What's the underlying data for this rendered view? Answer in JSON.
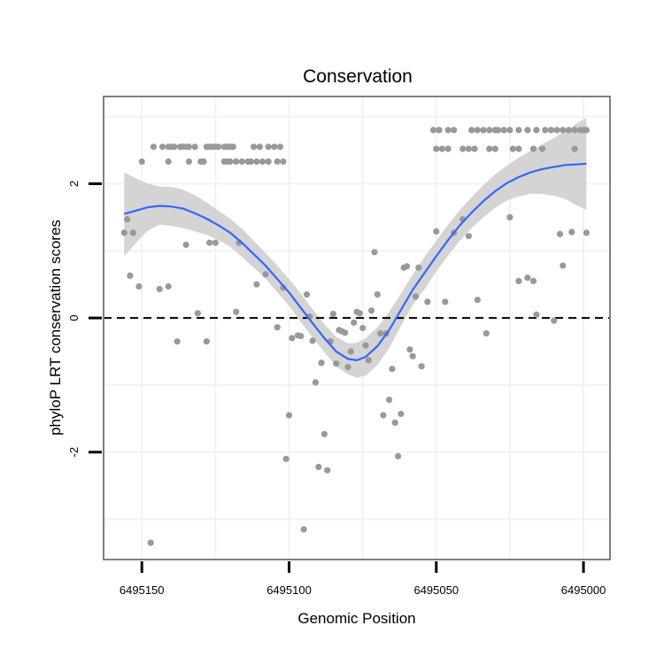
{
  "chart_data": {
    "type": "scatter",
    "title": "Conservation",
    "xlabel": "Genomic Position",
    "ylabel": "phyloP LRT conservation scores",
    "x_reversed": true,
    "xlim": [
      6495163,
      6494991
    ],
    "ylim": [
      -3.6,
      3.3
    ],
    "x_ticks": [
      6495150,
      6495100,
      6495050,
      6495000
    ],
    "x_tick_labels": [
      "6495150",
      "6495100",
      "6495050",
      "6495000"
    ],
    "y_ticks": [
      -2,
      0,
      2
    ],
    "y_tick_labels": [
      "-2",
      "0",
      "2"
    ],
    "reference_line": {
      "y": 0,
      "style": "dashed"
    },
    "grid": true,
    "colors": {
      "points": "#999999",
      "smooth_line": "#3366ff",
      "confidence_band": "#d4d4d4",
      "panel_border": "#7f7f7f",
      "grid": "#f2f2f2",
      "reference_line": "#000000"
    },
    "series": [
      {
        "name": "conservation-points",
        "points": [
          [
            6495156,
            1.27
          ],
          [
            6495155,
            1.47
          ],
          [
            6495154,
            0.63
          ],
          [
            6495153,
            1.27
          ],
          [
            6495151,
            0.47
          ],
          [
            6495147,
            -3.35
          ],
          [
            6495144,
            0.43
          ],
          [
            6495141,
            0.47
          ],
          [
            6495138,
            -0.35
          ],
          [
            6495135,
            1.09
          ],
          [
            6495131,
            0.07
          ],
          [
            6495128,
            -0.35
          ],
          [
            6495127,
            1.12
          ],
          [
            6495125,
            1.12
          ],
          [
            6495118,
            0.09
          ],
          [
            6495117,
            1.12
          ],
          [
            6495111,
            0.5
          ],
          [
            6495108,
            0.65
          ],
          [
            6495104,
            -0.14
          ],
          [
            6495102,
            0.45
          ],
          [
            6495101,
            -2.1
          ],
          [
            6495100,
            -1.45
          ],
          [
            6495099,
            -0.3
          ],
          [
            6495097,
            -0.26
          ],
          [
            6495096,
            -0.27
          ],
          [
            6495095,
            -3.15
          ],
          [
            6495094,
            0.35
          ],
          [
            6495093,
            0.02
          ],
          [
            6495092,
            -0.34
          ],
          [
            6495091,
            -0.96
          ],
          [
            6495090,
            -2.22
          ],
          [
            6495089,
            -0.67
          ],
          [
            6495088,
            -1.73
          ],
          [
            6495087,
            -2.27
          ],
          [
            6495086,
            -0.35
          ],
          [
            6495085,
            0.06
          ],
          [
            6495084,
            -0.68
          ],
          [
            6495083,
            -0.18
          ],
          [
            6495082,
            -0.2
          ],
          [
            6495081,
            -0.22
          ],
          [
            6495080,
            -0.73
          ],
          [
            6495079,
            -0.5
          ],
          [
            6495078,
            -0.07
          ],
          [
            6495077,
            0.09
          ],
          [
            6495076,
            0.07
          ],
          [
            6495075,
            -0.15
          ],
          [
            6495074,
            -0.41
          ],
          [
            6495073,
            -0.63
          ],
          [
            6495072,
            0.11
          ],
          [
            6495071,
            0.98
          ],
          [
            6495070,
            0.35
          ],
          [
            6495069,
            -0.23
          ],
          [
            6495068,
            -1.45
          ],
          [
            6495067,
            -0.23
          ],
          [
            6495066,
            -1.22
          ],
          [
            6495065,
            -0.76
          ],
          [
            6495064,
            -1.56
          ],
          [
            6495063,
            -2.06
          ],
          [
            6495062,
            -1.43
          ],
          [
            6495061,
            0.75
          ],
          [
            6495060,
            0.77
          ],
          [
            6495059,
            -0.47
          ],
          [
            6495058,
            -0.57
          ],
          [
            6495057,
            0.32
          ],
          [
            6495056,
            0.75
          ],
          [
            6495055,
            -0.72
          ],
          [
            6495053,
            0.24
          ],
          [
            6495050,
            1.29
          ],
          [
            6495047,
            0.24
          ],
          [
            6495044,
            1.27
          ],
          [
            6495041,
            1.47
          ],
          [
            6495039,
            1.22
          ],
          [
            6495036,
            0.27
          ],
          [
            6495033,
            -0.23
          ],
          [
            6495025,
            1.5
          ],
          [
            6495022,
            0.55
          ],
          [
            6495019,
            0.6
          ],
          [
            6495017,
            0.55
          ],
          [
            6495016,
            0.05
          ],
          [
            6495010,
            -0.04
          ],
          [
            6495008,
            1.25
          ],
          [
            6495007,
            0.78
          ],
          [
            6495004,
            1.28
          ],
          [
            6494999,
            1.27
          ],
          [
            6495146,
            2.55
          ],
          [
            6495143,
            2.55
          ],
          [
            6495141,
            2.55
          ],
          [
            6495140,
            2.55
          ],
          [
            6495139,
            2.55
          ],
          [
            6495137,
            2.55
          ],
          [
            6495136,
            2.55
          ],
          [
            6495135,
            2.55
          ],
          [
            6495134,
            2.55
          ],
          [
            6495132,
            2.55
          ],
          [
            6495128,
            2.55
          ],
          [
            6495127,
            2.55
          ],
          [
            6495126,
            2.55
          ],
          [
            6495125,
            2.55
          ],
          [
            6495124,
            2.55
          ],
          [
            6495122,
            2.55
          ],
          [
            6495121,
            2.55
          ],
          [
            6495120,
            2.55
          ],
          [
            6495119,
            2.55
          ],
          [
            6495112,
            2.55
          ],
          [
            6495110,
            2.55
          ],
          [
            6495107,
            2.55
          ],
          [
            6495105,
            2.55
          ],
          [
            6495103,
            2.55
          ],
          [
            6495150,
            2.33
          ],
          [
            6495141,
            2.33
          ],
          [
            6495134,
            2.33
          ],
          [
            6495130,
            2.33
          ],
          [
            6495129,
            2.33
          ],
          [
            6495122,
            2.33
          ],
          [
            6495121,
            2.33
          ],
          [
            6495120,
            2.33
          ],
          [
            6495118,
            2.33
          ],
          [
            6495116,
            2.33
          ],
          [
            6495114,
            2.33
          ],
          [
            6495113,
            2.33
          ],
          [
            6495111,
            2.33
          ],
          [
            6495109,
            2.33
          ],
          [
            6495107,
            2.33
          ],
          [
            6495104,
            2.33
          ],
          [
            6495102,
            2.33
          ],
          [
            6495051,
            2.8
          ],
          [
            6495049,
            2.8
          ],
          [
            6495046,
            2.8
          ],
          [
            6495044,
            2.8
          ],
          [
            6495038,
            2.8
          ],
          [
            6495036,
            2.8
          ],
          [
            6495034,
            2.8
          ],
          [
            6495032,
            2.8
          ],
          [
            6495030,
            2.8
          ],
          [
            6495029,
            2.8
          ],
          [
            6495027,
            2.8
          ],
          [
            6495025,
            2.8
          ],
          [
            6495022,
            2.8
          ],
          [
            6495019,
            2.8
          ],
          [
            6495016,
            2.8
          ],
          [
            6495013,
            2.8
          ],
          [
            6495011,
            2.8
          ],
          [
            6495009,
            2.8
          ],
          [
            6495007,
            2.8
          ],
          [
            6495005,
            2.8
          ],
          [
            6495003,
            2.8
          ],
          [
            6495001,
            2.8
          ],
          [
            6495000,
            2.8
          ],
          [
            6494999,
            2.8
          ],
          [
            6495050,
            2.52
          ],
          [
            6495048,
            2.52
          ],
          [
            6495046,
            2.52
          ],
          [
            6495041,
            2.52
          ],
          [
            6495039,
            2.52
          ],
          [
            6495037,
            2.52
          ],
          [
            6495032,
            2.52
          ],
          [
            6495030,
            2.52
          ],
          [
            6495024,
            2.52
          ],
          [
            6495022,
            2.52
          ],
          [
            6495017,
            2.52
          ],
          [
            6495014,
            2.52
          ],
          [
            6495003,
            2.52
          ]
        ]
      },
      {
        "name": "loess-smooth",
        "line": [
          [
            6495156,
            1.55
          ],
          [
            6495152,
            1.6
          ],
          [
            6495148,
            1.65
          ],
          [
            6495144,
            1.67
          ],
          [
            6495140,
            1.66
          ],
          [
            6495136,
            1.63
          ],
          [
            6495132,
            1.56
          ],
          [
            6495128,
            1.48
          ],
          [
            6495124,
            1.38
          ],
          [
            6495120,
            1.27
          ],
          [
            6495116,
            1.12
          ],
          [
            6495112,
            0.95
          ],
          [
            6495108,
            0.78
          ],
          [
            6495104,
            0.58
          ],
          [
            6495100,
            0.38
          ],
          [
            6495096,
            0.15
          ],
          [
            6495092,
            -0.08
          ],
          [
            6495088,
            -0.3
          ],
          [
            6495084,
            -0.5
          ],
          [
            6495080,
            -0.61
          ],
          [
            6495077,
            -0.63
          ],
          [
            6495074,
            -0.58
          ],
          [
            6495070,
            -0.42
          ],
          [
            6495066,
            -0.18
          ],
          [
            6495062,
            0.12
          ],
          [
            6495058,
            0.42
          ],
          [
            6495054,
            0.67
          ],
          [
            6495050,
            0.92
          ],
          [
            6495046,
            1.16
          ],
          [
            6495042,
            1.38
          ],
          [
            6495038,
            1.57
          ],
          [
            6495034,
            1.74
          ],
          [
            6495030,
            1.89
          ],
          [
            6495026,
            2.01
          ],
          [
            6495022,
            2.1
          ],
          [
            6495018,
            2.17
          ],
          [
            6495014,
            2.22
          ],
          [
            6495010,
            2.25
          ],
          [
            6495006,
            2.28
          ],
          [
            6495002,
            2.29
          ],
          [
            6494999,
            2.3
          ]
        ],
        "upper": [
          [
            6495156,
            2.17
          ],
          [
            6495152,
            2.08
          ],
          [
            6495148,
            2.0
          ],
          [
            6495144,
            1.96
          ],
          [
            6495140,
            1.95
          ],
          [
            6495136,
            1.91
          ],
          [
            6495132,
            1.83
          ],
          [
            6495128,
            1.72
          ],
          [
            6495124,
            1.6
          ],
          [
            6495120,
            1.48
          ],
          [
            6495116,
            1.33
          ],
          [
            6495112,
            1.15
          ],
          [
            6495108,
            0.97
          ],
          [
            6495104,
            0.78
          ],
          [
            6495100,
            0.58
          ],
          [
            6495096,
            0.36
          ],
          [
            6495092,
            0.13
          ],
          [
            6495088,
            -0.09
          ],
          [
            6495084,
            -0.28
          ],
          [
            6495080,
            -0.38
          ],
          [
            6495077,
            -0.37
          ],
          [
            6495074,
            -0.3
          ],
          [
            6495070,
            -0.14
          ],
          [
            6495066,
            0.09
          ],
          [
            6495062,
            0.36
          ],
          [
            6495058,
            0.65
          ],
          [
            6495054,
            0.91
          ],
          [
            6495050,
            1.15
          ],
          [
            6495046,
            1.39
          ],
          [
            6495042,
            1.61
          ],
          [
            6495038,
            1.8
          ],
          [
            6495034,
            1.98
          ],
          [
            6495030,
            2.14
          ],
          [
            6495026,
            2.27
          ],
          [
            6495022,
            2.39
          ],
          [
            6495018,
            2.49
          ],
          [
            6495014,
            2.59
          ],
          [
            6495010,
            2.68
          ],
          [
            6495006,
            2.79
          ],
          [
            6495002,
            2.91
          ],
          [
            6494999,
            2.98
          ]
        ],
        "lower": [
          [
            6495156,
            0.92
          ],
          [
            6495152,
            1.12
          ],
          [
            6495148,
            1.3
          ],
          [
            6495144,
            1.39
          ],
          [
            6495140,
            1.37
          ],
          [
            6495136,
            1.34
          ],
          [
            6495132,
            1.29
          ],
          [
            6495128,
            1.24
          ],
          [
            6495124,
            1.16
          ],
          [
            6495120,
            1.06
          ],
          [
            6495116,
            0.91
          ],
          [
            6495112,
            0.75
          ],
          [
            6495108,
            0.59
          ],
          [
            6495104,
            0.38
          ],
          [
            6495100,
            0.18
          ],
          [
            6495096,
            -0.06
          ],
          [
            6495092,
            -0.29
          ],
          [
            6495088,
            -0.51
          ],
          [
            6495084,
            -0.72
          ],
          [
            6495080,
            -0.84
          ],
          [
            6495077,
            -0.89
          ],
          [
            6495074,
            -0.86
          ],
          [
            6495070,
            -0.7
          ],
          [
            6495066,
            -0.45
          ],
          [
            6495062,
            -0.12
          ],
          [
            6495058,
            0.19
          ],
          [
            6495054,
            0.43
          ],
          [
            6495050,
            0.69
          ],
          [
            6495046,
            0.93
          ],
          [
            6495042,
            1.15
          ],
          [
            6495038,
            1.34
          ],
          [
            6495034,
            1.5
          ],
          [
            6495030,
            1.64
          ],
          [
            6495026,
            1.75
          ],
          [
            6495022,
            1.81
          ],
          [
            6495018,
            1.85
          ],
          [
            6495014,
            1.85
          ],
          [
            6495010,
            1.82
          ],
          [
            6495006,
            1.77
          ],
          [
            6495002,
            1.67
          ],
          [
            6494999,
            1.61
          ]
        ]
      }
    ]
  }
}
